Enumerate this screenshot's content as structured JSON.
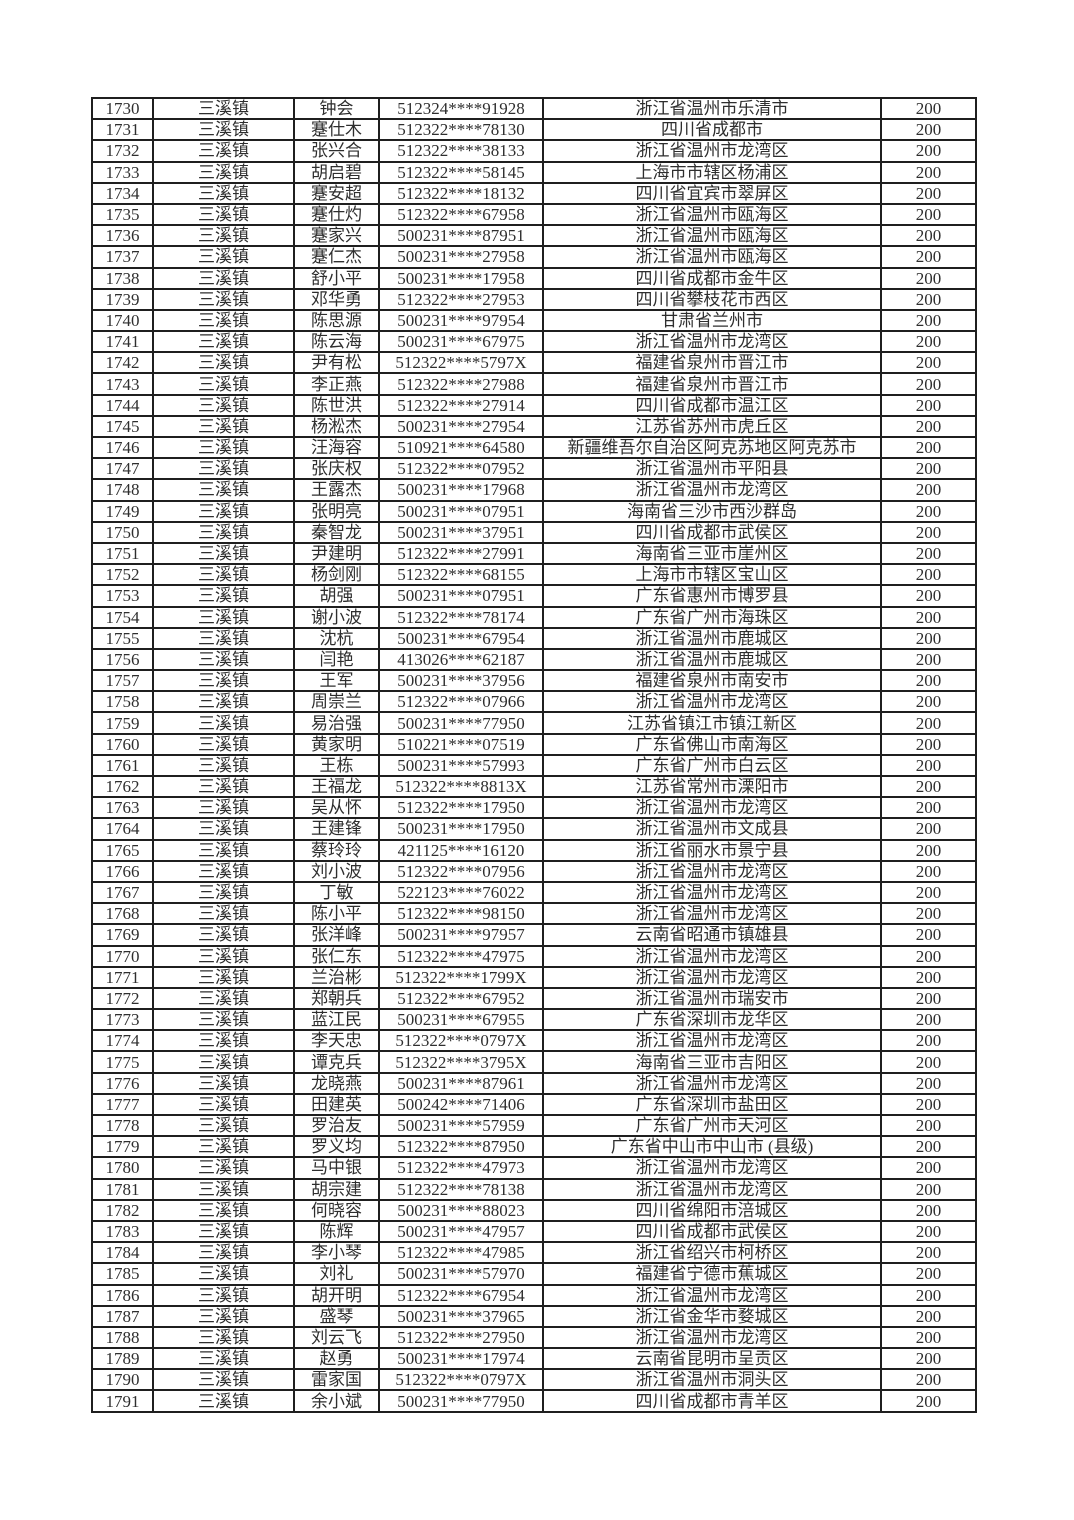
{
  "table": {
    "columns": [
      "serial-number",
      "town",
      "person-name",
      "id-number",
      "region",
      "amount"
    ],
    "rows": [
      [
        "1730",
        "三溪镇",
        "钟会",
        "512324****91928",
        "浙江省温州市乐清市",
        "200"
      ],
      [
        "1731",
        "三溪镇",
        "蹇仕木",
        "512322****78130",
        "四川省成都市",
        "200"
      ],
      [
        "1732",
        "三溪镇",
        "张兴合",
        "512322****38133",
        "浙江省温州市龙湾区",
        "200"
      ],
      [
        "1733",
        "三溪镇",
        "胡启碧",
        "512322****58145",
        "上海市市辖区杨浦区",
        "200"
      ],
      [
        "1734",
        "三溪镇",
        "蹇安超",
        "512322****18132",
        "四川省宜宾市翠屏区",
        "200"
      ],
      [
        "1735",
        "三溪镇",
        "蹇仕灼",
        "512322****67958",
        "浙江省温州市瓯海区",
        "200"
      ],
      [
        "1736",
        "三溪镇",
        "蹇家兴",
        "500231****87951",
        "浙江省温州市瓯海区",
        "200"
      ],
      [
        "1737",
        "三溪镇",
        "蹇仁杰",
        "500231****27958",
        "浙江省温州市瓯海区",
        "200"
      ],
      [
        "1738",
        "三溪镇",
        "舒小平",
        "500231****17958",
        "四川省成都市金牛区",
        "200"
      ],
      [
        "1739",
        "三溪镇",
        "邓华勇",
        "512322****27953",
        "四川省攀枝花市西区",
        "200"
      ],
      [
        "1740",
        "三溪镇",
        "陈思源",
        "500231****97954",
        "甘肃省兰州市",
        "200"
      ],
      [
        "1741",
        "三溪镇",
        "陈云海",
        "500231****67975",
        "浙江省温州市龙湾区",
        "200"
      ],
      [
        "1742",
        "三溪镇",
        "尹有松",
        "512322****5797X",
        "福建省泉州市晋江市",
        "200"
      ],
      [
        "1743",
        "三溪镇",
        "李正燕",
        "512322****27988",
        "福建省泉州市晋江市",
        "200"
      ],
      [
        "1744",
        "三溪镇",
        "陈世洪",
        "512322****27914",
        "四川省成都市温江区",
        "200"
      ],
      [
        "1745",
        "三溪镇",
        "杨淞杰",
        "500231****27954",
        "江苏省苏州市虎丘区",
        "200"
      ],
      [
        "1746",
        "三溪镇",
        "汪海容",
        "510921****64580",
        "新疆维吾尔自治区阿克苏地区阿克苏市",
        "200"
      ],
      [
        "1747",
        "三溪镇",
        "张庆权",
        "512322****07952",
        "浙江省温州市平阳县",
        "200"
      ],
      [
        "1748",
        "三溪镇",
        "王露杰",
        "500231****17968",
        "浙江省温州市龙湾区",
        "200"
      ],
      [
        "1749",
        "三溪镇",
        "张明亮",
        "500231****07951",
        "海南省三沙市西沙群岛",
        "200"
      ],
      [
        "1750",
        "三溪镇",
        "秦智龙",
        "500231****37951",
        "四川省成都市武侯区",
        "200"
      ],
      [
        "1751",
        "三溪镇",
        "尹建明",
        "512322****27991",
        "海南省三亚市崖州区",
        "200"
      ],
      [
        "1752",
        "三溪镇",
        "杨剑刚",
        "512322****68155",
        "上海市市辖区宝山区",
        "200"
      ],
      [
        "1753",
        "三溪镇",
        "胡强",
        "500231****07951",
        "广东省惠州市博罗县",
        "200"
      ],
      [
        "1754",
        "三溪镇",
        "谢小波",
        "512322****78174",
        "广东省广州市海珠区",
        "200"
      ],
      [
        "1755",
        "三溪镇",
        "沈杭",
        "500231****67954",
        "浙江省温州市鹿城区",
        "200"
      ],
      [
        "1756",
        "三溪镇",
        "闫艳",
        "413026****62187",
        "浙江省温州市鹿城区",
        "200"
      ],
      [
        "1757",
        "三溪镇",
        "王军",
        "500231****37956",
        "福建省泉州市南安市",
        "200"
      ],
      [
        "1758",
        "三溪镇",
        "周崇兰",
        "512322****07966",
        "浙江省温州市龙湾区",
        "200"
      ],
      [
        "1759",
        "三溪镇",
        "易治强",
        "500231****77950",
        "江苏省镇江市镇江新区",
        "200"
      ],
      [
        "1760",
        "三溪镇",
        "黄家明",
        "510221****07519",
        "广东省佛山市南海区",
        "200"
      ],
      [
        "1761",
        "三溪镇",
        "王栋",
        "500231****57993",
        "广东省广州市白云区",
        "200"
      ],
      [
        "1762",
        "三溪镇",
        "王福龙",
        "512322****8813X",
        "江苏省常州市溧阳市",
        "200"
      ],
      [
        "1763",
        "三溪镇",
        "吴从怀",
        "512322****17950",
        "浙江省温州市龙湾区",
        "200"
      ],
      [
        "1764",
        "三溪镇",
        "王建锋",
        "500231****17950",
        "浙江省温州市文成县",
        "200"
      ],
      [
        "1765",
        "三溪镇",
        "蔡玲玲",
        "421125****16120",
        "浙江省丽水市景宁县",
        "200"
      ],
      [
        "1766",
        "三溪镇",
        "刘小波",
        "512322****07956",
        "浙江省温州市龙湾区",
        "200"
      ],
      [
        "1767",
        "三溪镇",
        "丁敏",
        "522123****76022",
        "浙江省温州市龙湾区",
        "200"
      ],
      [
        "1768",
        "三溪镇",
        "陈小平",
        "512322****98150",
        "浙江省温州市龙湾区",
        "200"
      ],
      [
        "1769",
        "三溪镇",
        "张洋峰",
        "500231****97957",
        "云南省昭通市镇雄县",
        "200"
      ],
      [
        "1770",
        "三溪镇",
        "张仁东",
        "512322****47975",
        "浙江省温州市龙湾区",
        "200"
      ],
      [
        "1771",
        "三溪镇",
        "兰治彬",
        "512322****1799X",
        "浙江省温州市龙湾区",
        "200"
      ],
      [
        "1772",
        "三溪镇",
        "郑朝兵",
        "512322****67952",
        "浙江省温州市瑞安市",
        "200"
      ],
      [
        "1773",
        "三溪镇",
        "蓝江民",
        "500231****67955",
        "广东省深圳市龙华区",
        "200"
      ],
      [
        "1774",
        "三溪镇",
        "李天忠",
        "512322****0797X",
        "浙江省温州市龙湾区",
        "200"
      ],
      [
        "1775",
        "三溪镇",
        "谭克兵",
        "512322****3795X",
        "海南省三亚市吉阳区",
        "200"
      ],
      [
        "1776",
        "三溪镇",
        "龙晓燕",
        "500231****87961",
        "浙江省温州市龙湾区",
        "200"
      ],
      [
        "1777",
        "三溪镇",
        "田建英",
        "500242****71406",
        "广东省深圳市盐田区",
        "200"
      ],
      [
        "1778",
        "三溪镇",
        "罗治友",
        "500231****57959",
        "广东省广州市天河区",
        "200"
      ],
      [
        "1779",
        "三溪镇",
        "罗义均",
        "512322****87950",
        "广东省中山市中山市 (县级)",
        "200"
      ],
      [
        "1780",
        "三溪镇",
        "马中银",
        "512322****47973",
        "浙江省温州市龙湾区",
        "200"
      ],
      [
        "1781",
        "三溪镇",
        "胡宗建",
        "512322****78138",
        "浙江省温州市龙湾区",
        "200"
      ],
      [
        "1782",
        "三溪镇",
        "何晓容",
        "500231****88023",
        "四川省绵阳市涪城区",
        "200"
      ],
      [
        "1783",
        "三溪镇",
        "陈辉",
        "500231****47957",
        "四川省成都市武侯区",
        "200"
      ],
      [
        "1784",
        "三溪镇",
        "李小琴",
        "512322****47985",
        "浙江省绍兴市柯桥区",
        "200"
      ],
      [
        "1785",
        "三溪镇",
        "刘礼",
        "500231****57970",
        "福建省宁德市蕉城区",
        "200"
      ],
      [
        "1786",
        "三溪镇",
        "胡开明",
        "512322****67954",
        "浙江省温州市龙湾区",
        "200"
      ],
      [
        "1787",
        "三溪镇",
        "盛琴",
        "500231****37965",
        "浙江省金华市婺城区",
        "200"
      ],
      [
        "1788",
        "三溪镇",
        "刘云飞",
        "512322****27950",
        "浙江省温州市龙湾区",
        "200"
      ],
      [
        "1789",
        "三溪镇",
        "赵勇",
        "500231****17974",
        "云南省昆明市呈贡区",
        "200"
      ],
      [
        "1790",
        "三溪镇",
        "雷家国",
        "512322****0797X",
        "浙江省温州市洞头区",
        "200"
      ],
      [
        "1791",
        "三溪镇",
        "余小斌",
        "500231****77950",
        "四川省成都市青羊区",
        "200"
      ]
    ]
  }
}
